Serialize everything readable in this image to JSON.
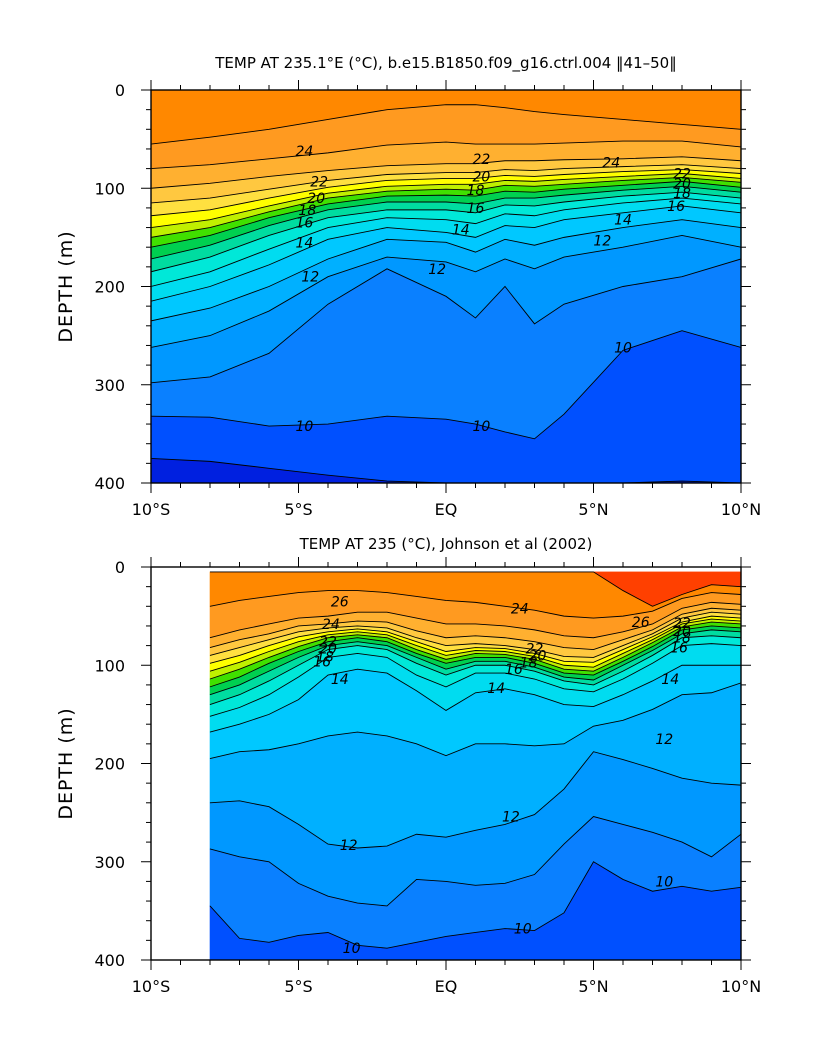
{
  "chart_data": [
    {
      "type": "heatmap",
      "subtype": "filled-contour",
      "title": "TEMP AT 235.1°E (°C), b.e15.B1850.f09_g16.ctrl.004 ‖41–50‖",
      "xlabel": "",
      "ylabel": "DEPTH (m)",
      "xlim": [
        -10,
        10
      ],
      "ylim": [
        400,
        0
      ],
      "x_ticks": [
        -10,
        -5,
        0,
        5,
        10
      ],
      "x_tick_labels": [
        "10°S",
        "5°S",
        "EQ",
        "5°N",
        "10°N"
      ],
      "y_ticks": [
        0,
        100,
        200,
        300,
        400
      ],
      "y_tick_labels": [
        "0",
        "100",
        "200",
        "300",
        "400"
      ],
      "contour_interval": 1,
      "colors": {
        "8": "#0020e0",
        "9": "#0050ff",
        "10": "#0a80ff",
        "11": "#0098ff",
        "12": "#00b0ff",
        "13": "#00c8ff",
        "14": "#00dcf0",
        "15": "#00e8d8",
        "16": "#00dca0",
        "17": "#00d050",
        "18": "#40e000",
        "19": "#c0f000",
        "20": "#ffff00",
        "21": "#ffe040",
        "22": "#ffc840",
        "23": "#ffb030",
        "24": "#ff9a20",
        "25": "#ff8800",
        "26": "#ff4000"
      },
      "isotherm_depths": {
        "x": [
          -10,
          -8,
          -6,
          -4,
          -2,
          0,
          1,
          2,
          3,
          4,
          6,
          8,
          10
        ],
        "t9": [
          375,
          378,
          385,
          392,
          398,
          402,
          402,
          402,
          402,
          402,
          402,
          398,
          402
        ],
        "t10": [
          332,
          333,
          342,
          340,
          332,
          335,
          340,
          348,
          355,
          330,
          265,
          245,
          262
        ],
        "t11": [
          298,
          292,
          268,
          218,
          182,
          210,
          232,
          200,
          238,
          218,
          200,
          190,
          172
        ],
        "t12": [
          262,
          250,
          225,
          190,
          170,
          175,
          185,
          172,
          182,
          170,
          160,
          148,
          160
        ],
        "t13": [
          235,
          222,
          200,
          172,
          152,
          155,
          165,
          152,
          158,
          150,
          140,
          132,
          140
        ],
        "t14": [
          215,
          200,
          178,
          152,
          140,
          145,
          150,
          138,
          140,
          132,
          125,
          118,
          125
        ],
        "t15": [
          200,
          185,
          162,
          140,
          130,
          132,
          136,
          126,
          128,
          122,
          115,
          110,
          116
        ],
        "t16": [
          185,
          170,
          148,
          130,
          122,
          122,
          125,
          117,
          118,
          114,
          108,
          104,
          110
        ],
        "t17": [
          172,
          158,
          138,
          122,
          114,
          114,
          116,
          110,
          110,
          107,
          102,
          98,
          104
        ],
        "t18": [
          160,
          148,
          130,
          116,
          108,
          107,
          108,
          103,
          104,
          101,
          97,
          93,
          99
        ],
        "t19": [
          150,
          140,
          124,
          110,
          103,
          101,
          102,
          97,
          98,
          96,
          92,
          89,
          94
        ],
        "t20": [
          140,
          132,
          118,
          105,
          98,
          96,
          96,
          92,
          93,
          91,
          88,
          85,
          90
        ],
        "t21": [
          128,
          122,
          110,
          99,
          92,
          90,
          90,
          87,
          88,
          86,
          83,
          81,
          85
        ],
        "t22": [
          115,
          110,
          101,
          92,
          86,
          84,
          84,
          81,
          82,
          80,
          78,
          76,
          80
        ],
        "t23": [
          100,
          95,
          88,
          82,
          77,
          75,
          75,
          72,
          72,
          71,
          70,
          68,
          72
        ],
        "t24": [
          80,
          76,
          70,
          64,
          56,
          53,
          55,
          55,
          55,
          54,
          52,
          52,
          58
        ],
        "t25": [
          55,
          48,
          40,
          30,
          20,
          15,
          15,
          18,
          22,
          25,
          30,
          35,
          40
        ]
      },
      "contour_labels": [
        {
          "text": "24",
          "x": -4.8,
          "y": 62
        },
        {
          "text": "22",
          "x": -4.3,
          "y": 93
        },
        {
          "text": "20",
          "x": -4.4,
          "y": 110
        },
        {
          "text": "18",
          "x": -4.7,
          "y": 122
        },
        {
          "text": "16",
          "x": -4.8,
          "y": 135
        },
        {
          "text": "14",
          "x": -4.8,
          "y": 155
        },
        {
          "text": "12",
          "x": -4.6,
          "y": 190
        },
        {
          "text": "22",
          "x": 1.2,
          "y": 70
        },
        {
          "text": "20",
          "x": 1.2,
          "y": 88
        },
        {
          "text": "18",
          "x": 1.0,
          "y": 102
        },
        {
          "text": "16",
          "x": 1.0,
          "y": 120
        },
        {
          "text": "14",
          "x": 0.5,
          "y": 142
        },
        {
          "text": "12",
          "x": -0.3,
          "y": 182
        },
        {
          "text": "24",
          "x": 5.6,
          "y": 74
        },
        {
          "text": "22",
          "x": 8.0,
          "y": 85
        },
        {
          "text": "20",
          "x": 8.0,
          "y": 95
        },
        {
          "text": "18",
          "x": 8.0,
          "y": 105
        },
        {
          "text": "16",
          "x": 7.8,
          "y": 118
        },
        {
          "text": "14",
          "x": 6.0,
          "y": 132
        },
        {
          "text": "12",
          "x": 5.3,
          "y": 153
        },
        {
          "text": "10",
          "x": -4.8,
          "y": 342
        },
        {
          "text": "10",
          "x": 1.2,
          "y": 342
        },
        {
          "text": "10",
          "x": 6.0,
          "y": 262
        }
      ]
    },
    {
      "type": "heatmap",
      "subtype": "filled-contour",
      "title": "TEMP AT 235 (°C), Johnson et al (2002)",
      "xlabel": "",
      "ylabel": "DEPTH (m)",
      "xlim": [
        -10,
        10
      ],
      "ylim": [
        400,
        0
      ],
      "data_xlim": [
        -8,
        10
      ],
      "data_ylim": [
        5,
        400
      ],
      "x_ticks": [
        -10,
        -5,
        0,
        5,
        10
      ],
      "x_tick_labels": [
        "10°S",
        "5°S",
        "EQ",
        "5°N",
        "10°N"
      ],
      "y_ticks": [
        0,
        100,
        200,
        300,
        400
      ],
      "y_tick_labels": [
        "0",
        "100",
        "200",
        "300",
        "400"
      ],
      "contour_interval": 1,
      "isotherm_depths": {
        "x": [
          -8,
          -7,
          -6,
          -5,
          -4,
          -3,
          -2,
          -1,
          0,
          1,
          2,
          3,
          4,
          5,
          6,
          7,
          8,
          9,
          10
        ],
        "t9": [
          402,
          402,
          402,
          402,
          402,
          402,
          402,
          402,
          402,
          402,
          402,
          402,
          402,
          402,
          402,
          402,
          402,
          402,
          402
        ],
        "t10": [
          345,
          378,
          382,
          375,
          372,
          385,
          388,
          382,
          376,
          372,
          368,
          370,
          352,
          300,
          318,
          330,
          325,
          330,
          326
        ],
        "t11": [
          287,
          295,
          300,
          322,
          335,
          342,
          345,
          318,
          320,
          324,
          322,
          313,
          282,
          254,
          262,
          270,
          280,
          295,
          272
        ],
        "t12": [
          240,
          238,
          244,
          262,
          282,
          286,
          284,
          272,
          275,
          268,
          262,
          252,
          226,
          188,
          196,
          205,
          215,
          220,
          222
        ],
        "t13": [
          195,
          188,
          186,
          180,
          172,
          168,
          172,
          180,
          192,
          180,
          180,
          182,
          180,
          162,
          156,
          145,
          130,
          128,
          118
        ],
        "t14": [
          168,
          160,
          150,
          135,
          110,
          104,
          108,
          126,
          146,
          128,
          124,
          130,
          140,
          142,
          130,
          116,
          100,
          100,
          100
        ],
        "t15": [
          152,
          143,
          130,
          112,
          92,
          88,
          92,
          110,
          122,
          108,
          108,
          114,
          124,
          127,
          114,
          98,
          80,
          78,
          80
        ],
        "t16": [
          140,
          130,
          116,
          100,
          84,
          80,
          84,
          98,
          110,
          100,
          100,
          106,
          116,
          120,
          106,
          90,
          72,
          70,
          72
        ],
        "t17": [
          130,
          120,
          106,
          92,
          80,
          76,
          80,
          92,
          104,
          96,
          96,
          102,
          112,
          115,
          100,
          85,
          68,
          64,
          66
        ],
        "t18": [
          122,
          112,
          98,
          86,
          76,
          72,
          76,
          88,
          98,
          92,
          92,
          98,
          108,
          110,
          96,
          81,
          64,
          60,
          62
        ],
        "t19": [
          114,
          104,
          92,
          81,
          72,
          69,
          72,
          84,
          94,
          88,
          89,
          94,
          104,
          106,
          92,
          77,
          61,
          56,
          58
        ],
        "t20": [
          106,
          97,
          86,
          76,
          69,
          66,
          69,
          80,
          90,
          85,
          86,
          91,
          100,
          102,
          88,
          74,
          58,
          53,
          55
        ],
        "t21": [
          98,
          90,
          80,
          71,
          66,
          63,
          66,
          76,
          86,
          82,
          83,
          88,
          96,
          97,
          84,
          71,
          56,
          50,
          52
        ],
        "t22": [
          90,
          82,
          74,
          66,
          62,
          60,
          62,
          72,
          80,
          78,
          80,
          84,
          91,
          92,
          80,
          68,
          52,
          46,
          48
        ],
        "t23": [
          82,
          74,
          68,
          60,
          58,
          55,
          56,
          65,
          72,
          70,
          72,
          76,
          82,
          84,
          74,
          64,
          48,
          42,
          44
        ],
        "t24": [
          72,
          64,
          58,
          52,
          50,
          46,
          46,
          52,
          58,
          58,
          60,
          64,
          70,
          72,
          66,
          58,
          42,
          36,
          38
        ],
        "t25": [
          40,
          34,
          30,
          26,
          24,
          24,
          26,
          30,
          34,
          36,
          40,
          44,
          50,
          52,
          50,
          45,
          32,
          26,
          28
        ],
        "t26": [
          5,
          5,
          5,
          5,
          5,
          5,
          5,
          5,
          5,
          5,
          5,
          5,
          5,
          5,
          24,
          40,
          28,
          18,
          20
        ]
      },
      "contour_labels": [
        {
          "text": "26",
          "x": -3.6,
          "y": 35
        },
        {
          "text": "24",
          "x": -3.9,
          "y": 58
        },
        {
          "text": "22",
          "x": -4.0,
          "y": 76
        },
        {
          "text": "20",
          "x": -4.0,
          "y": 83
        },
        {
          "text": "18",
          "x": -4.1,
          "y": 91
        },
        {
          "text": "16",
          "x": -4.2,
          "y": 96
        },
        {
          "text": "14",
          "x": -3.6,
          "y": 114
        },
        {
          "text": "24",
          "x": 2.5,
          "y": 42
        },
        {
          "text": "22",
          "x": 3.0,
          "y": 83
        },
        {
          "text": "20",
          "x": 3.1,
          "y": 90
        },
        {
          "text": "18",
          "x": 2.8,
          "y": 97
        },
        {
          "text": "16",
          "x": 2.3,
          "y": 104
        },
        {
          "text": "14",
          "x": 1.7,
          "y": 123
        },
        {
          "text": "26",
          "x": 6.6,
          "y": 56
        },
        {
          "text": "22",
          "x": 8.0,
          "y": 57
        },
        {
          "text": "20",
          "x": 8.0,
          "y": 65
        },
        {
          "text": "18",
          "x": 8.0,
          "y": 72
        },
        {
          "text": "16",
          "x": 7.9,
          "y": 82
        },
        {
          "text": "14",
          "x": 7.6,
          "y": 114
        },
        {
          "text": "12",
          "x": 7.4,
          "y": 175
        },
        {
          "text": "12",
          "x": 2.2,
          "y": 254
        },
        {
          "text": "12",
          "x": -3.3,
          "y": 283
        },
        {
          "text": "10",
          "x": 2.6,
          "y": 368
        },
        {
          "text": "10",
          "x": -3.2,
          "y": 388
        },
        {
          "text": "10",
          "x": 7.4,
          "y": 320
        }
      ]
    }
  ]
}
